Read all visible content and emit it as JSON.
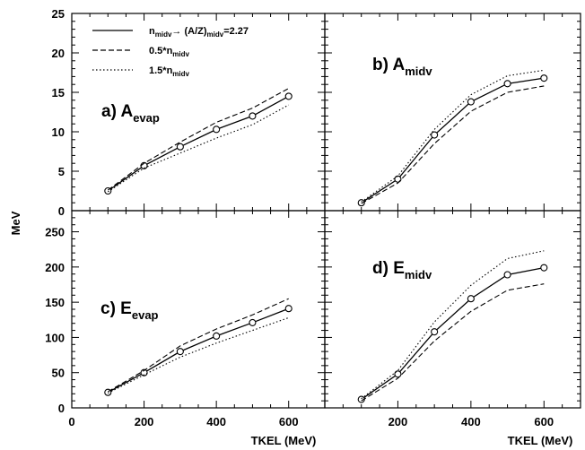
{
  "chart_data": {
    "type": "line",
    "layout": "2x2 panels, shared x-axis per column, shared y-axis per row",
    "ylabel": "MeV",
    "xlabel": "TKEL (MeV)",
    "legend": {
      "placement": "top-left of panel a",
      "entries": [
        {
          "style": "solid",
          "main": "n",
          "sub": "midv",
          "rest": "→ (A/Z)",
          "sub2": "midv",
          "tail": "=2.27"
        },
        {
          "style": "dashed",
          "main": "0.5*n",
          "sub": "midv"
        },
        {
          "style": "dotted",
          "main": "1.5*n",
          "sub": "midv"
        }
      ]
    },
    "x_ticks_left": [
      "0",
      "200",
      "400",
      "600"
    ],
    "x_ticks_right": [
      "200",
      "400",
      "600"
    ],
    "y_ticks_top": [
      "0",
      "5",
      "10",
      "15",
      "20",
      "25"
    ],
    "y_ticks_bottom": [
      "0",
      "50",
      "100",
      "150",
      "200",
      "250"
    ],
    "panels": [
      {
        "id": "a",
        "label_main": "a)  A",
        "label_sub": "evap",
        "col": 0,
        "row": 0,
        "xlim": [
          0,
          700
        ],
        "ylim": [
          0,
          25
        ],
        "x": [
          100,
          200,
          300,
          400,
          500,
          600
        ],
        "series": [
          {
            "name": "solid",
            "values": [
              2.5,
              5.7,
              8.1,
              10.3,
              12.0,
              14.5
            ]
          },
          {
            "name": "dashed",
            "values": [
              2.6,
              6.0,
              8.7,
              11.2,
              13.0,
              15.5
            ]
          },
          {
            "name": "dotted",
            "values": [
              2.4,
              5.4,
              7.3,
              9.2,
              10.9,
              13.4
            ]
          }
        ]
      },
      {
        "id": "b",
        "label_main": "b)  A",
        "label_sub": "midv",
        "col": 1,
        "row": 0,
        "xlim": [
          0,
          700
        ],
        "ylim": [
          0,
          25
        ],
        "x": [
          100,
          200,
          300,
          400,
          500,
          600
        ],
        "series": [
          {
            "name": "solid",
            "values": [
              1.0,
              4.0,
              9.6,
              13.8,
              16.1,
              16.8
            ]
          },
          {
            "name": "dashed",
            "values": [
              0.9,
              3.5,
              8.5,
              12.6,
              15.0,
              15.8
            ]
          },
          {
            "name": "dotted",
            "values": [
              1.1,
              4.4,
              10.3,
              14.7,
              17.1,
              17.8
            ]
          }
        ]
      },
      {
        "id": "c",
        "label_main": "c)  E",
        "label_sub": "evap",
        "col": 0,
        "row": 1,
        "xlim": [
          0,
          700
        ],
        "ylim": [
          0,
          280
        ],
        "x": [
          100,
          200,
          300,
          400,
          500,
          600
        ],
        "series": [
          {
            "name": "solid",
            "values": [
              22,
              50,
              80,
              102,
              121,
              141
            ]
          },
          {
            "name": "dashed",
            "values": [
              23,
              53,
              88,
              112,
              132,
              155
            ]
          },
          {
            "name": "dotted",
            "values": [
              21,
              47,
              72,
              92,
              110,
              128
            ]
          }
        ]
      },
      {
        "id": "d",
        "label_main": "d)  E",
        "label_sub": "midv",
        "col": 1,
        "row": 1,
        "xlim": [
          0,
          700
        ],
        "ylim": [
          0,
          280
        ],
        "x": [
          100,
          200,
          300,
          400,
          500,
          600
        ],
        "series": [
          {
            "name": "solid",
            "values": [
              12,
              48,
              108,
              155,
              189,
              199
            ]
          },
          {
            "name": "dashed",
            "values": [
              10,
              42,
              95,
              137,
              167,
              176
            ]
          },
          {
            "name": "dotted",
            "values": [
              13,
              53,
              122,
              174,
              212,
              223
            ]
          }
        ]
      }
    ]
  }
}
